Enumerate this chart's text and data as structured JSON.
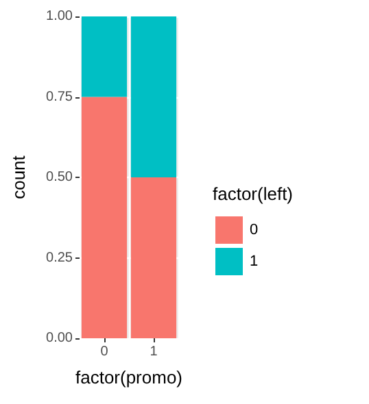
{
  "chart_data": {
    "type": "bar",
    "stacked": true,
    "xlabel": "factor(promo)",
    "ylabel": "count",
    "legend_title": "factor(left)",
    "categories": [
      "0",
      "1"
    ],
    "series": [
      {
        "name": "0",
        "color": "#f8766d",
        "values": [
          0.75,
          0.5
        ]
      },
      {
        "name": "1",
        "color": "#00bfc4",
        "values": [
          0.25,
          0.5
        ]
      }
    ],
    "ylim": [
      0,
      1
    ],
    "yticks": [
      {
        "value": 0,
        "label": "0.00"
      },
      {
        "value": 0.25,
        "label": "0.25"
      },
      {
        "value": 0.5,
        "label": "0.50"
      },
      {
        "value": 0.75,
        "label": "0.75"
      },
      {
        "value": 1,
        "label": "1.00"
      }
    ],
    "grid": true,
    "legend": "right"
  }
}
